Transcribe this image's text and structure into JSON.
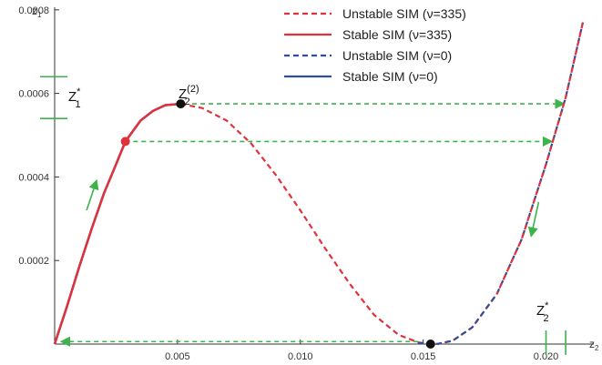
{
  "chart_data": {
    "type": "line",
    "title": "",
    "xlabel": "z",
    "xlabel_sub": "2",
    "ylabel": "z",
    "ylabel_sub": "1",
    "xlim": [
      0,
      0.0215
    ],
    "ylim": [
      0,
      0.00078
    ],
    "x_ticks": [
      {
        "value": 0.005,
        "label": "0.005"
      },
      {
        "value": 0.01,
        "label": "0.010"
      },
      {
        "value": 0.015,
        "label": "0.015"
      },
      {
        "value": 0.02,
        "label": "0.020"
      }
    ],
    "y_ticks": [
      {
        "value": 0.0002,
        "label": "0.0002"
      },
      {
        "value": 0.0004,
        "label": "0.0004"
      },
      {
        "value": 0.0006,
        "label": "0.0006"
      },
      {
        "value": 0.0008,
        "label": "0.0008"
      }
    ],
    "series": [
      {
        "name": "Unstable SIM (ν=335)",
        "color": "#e0323c",
        "dashed": true,
        "x": [
          0.00513,
          0.006,
          0.007,
          0.008,
          0.009,
          0.01,
          0.011,
          0.012,
          0.013,
          0.014,
          0.0148,
          0.0153,
          0.0156,
          0.0162,
          0.017,
          0.018
        ],
        "y": [
          0.000575,
          0.000565,
          0.000535,
          0.00048,
          0.000405,
          0.00032,
          0.00023,
          0.000145,
          7e-05,
          2.2e-05,
          4e-06,
          0.0,
          5e-07,
          8e-06,
          4e-05,
          0.00012
        ]
      },
      {
        "name": "Stable SIM (ν=335)",
        "color": "#e0323c",
        "dashed": false,
        "x": [
          0.0,
          0.0005,
          0.001,
          0.0015,
          0.002,
          0.0025,
          0.00288,
          0.0035,
          0.004,
          0.0045,
          0.00513
        ],
        "y": [
          0.0,
          9e-05,
          0.000185,
          0.000275,
          0.00036,
          0.00043,
          0.000485,
          0.000535,
          0.000558,
          0.000572,
          0.000575
        ]
      },
      {
        "name": "Unstable SIM (ν=0)",
        "color": "#2c4f9e",
        "dashed": true,
        "x": [
          0.0148,
          0.0153,
          0.0156,
          0.0162,
          0.017,
          0.018,
          0.019,
          0.02,
          0.0208,
          0.0215
        ],
        "y": [
          3e-06,
          0.0,
          5e-07,
          8e-06,
          4e-05,
          0.00012,
          0.00025,
          0.00043,
          0.00059,
          0.00077
        ]
      },
      {
        "name": "Stable SIM (ν=0)",
        "color": "#2c4f9e",
        "dashed": false,
        "x": [
          0.0,
          0.0005,
          0.001,
          0.0015,
          0.002,
          0.0025,
          0.00288,
          0.0035,
          0.004,
          0.0045,
          0.00513
        ],
        "y": [
          0.0,
          9e-05,
          0.000185,
          0.000275,
          0.00036,
          0.00043,
          0.000485,
          0.000535,
          0.000558,
          0.000572,
          0.000575
        ]
      }
    ],
    "red_tail": {
      "x": [
        0.018,
        0.019,
        0.02,
        0.0208,
        0.0215
      ],
      "y": [
        0.00012,
        0.00025,
        0.00043,
        0.00059,
        0.00077
      ]
    },
    "points": [
      {
        "name": "red-point",
        "x": 0.00288,
        "y": 0.000485,
        "color": "#e0323c"
      },
      {
        "name": "z2-2-point",
        "x": 0.00513,
        "y": 0.000575,
        "color": "#111111"
      },
      {
        "name": "min-point",
        "x": 0.0153,
        "y": 0.0,
        "color": "#111111"
      }
    ],
    "green_arrows": [
      {
        "from": [
          0.0056,
          0.000575
        ],
        "to": [
          0.0207,
          0.000575
        ]
      },
      {
        "from": [
          0.0032,
          0.000485
        ],
        "to": [
          0.0202,
          0.000485
        ]
      },
      {
        "from": [
          0.0148,
          6e-06
        ],
        "to": [
          0.0003,
          6e-06
        ]
      }
    ],
    "green_curve_arrows": [
      {
        "x": 0.0013,
        "y": 0.00032,
        "dx": 0.0004,
        "dy": 7e-05
      },
      {
        "x": 0.0197,
        "y": 0.00034,
        "dx": -0.0003,
        "dy": -8e-05
      },
      {
        "x": 0.0212,
        "y": 0.00073,
        "dx": 0.0,
        "dy": 0.0
      }
    ],
    "y_marks": {
      "y_top": 0.00064,
      "y_bottom": 0.00054,
      "label": "Z",
      "sup": "*",
      "sub": "1"
    },
    "x_marks": {
      "x_left": 0.02,
      "x_right": 0.0208,
      "label": "Z",
      "sup": "*",
      "sub": "2"
    },
    "point_label": {
      "label": "Z",
      "sup": "(2)",
      "sub": "2"
    },
    "legend_position": "top-right",
    "grid": false
  }
}
